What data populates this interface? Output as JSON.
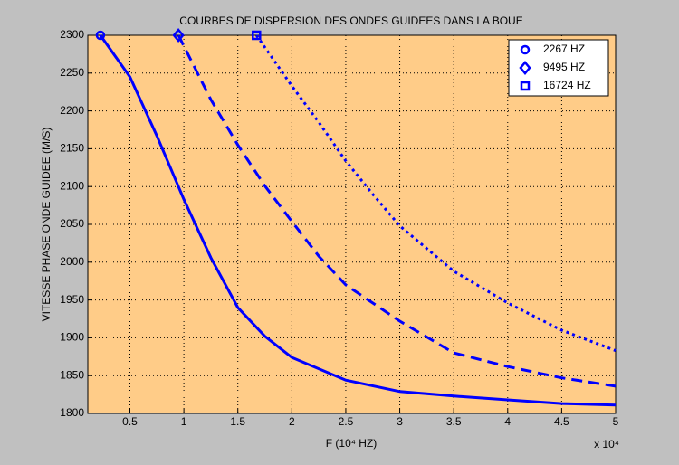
{
  "chart_data": {
    "type": "line",
    "title": "COURBES DE DISPERSION DES ONDES GUIDEES DANS LA BOUE",
    "xlabel": "F (10⁴ HZ)",
    "ylabel": "VITESSE PHASE ONDE GUIDEE (M/S)",
    "x_multiplier": "x 10⁴",
    "xlim": [
      0.11,
      5
    ],
    "xticks": [
      0.5,
      1,
      1.5,
      2,
      2.5,
      3,
      3.5,
      4,
      4.5,
      5
    ],
    "ylim": [
      1800,
      2300
    ],
    "yticks": [
      1800,
      1850,
      1900,
      1950,
      2000,
      2050,
      2100,
      2150,
      2200,
      2250,
      2300
    ],
    "grid": true,
    "legend": "top-right",
    "series": [
      {
        "name": "2267 HZ",
        "color": "#0000ff",
        "linestyle": "solid",
        "marker": "circle",
        "x": [
          0.2267,
          0.5,
          0.75,
          1,
          1.25,
          1.5,
          1.75,
          2,
          2.5,
          3,
          3.5,
          4,
          4.5,
          5
        ],
        "values": [
          2300,
          2245,
          2167,
          2083,
          2006,
          1940,
          1902,
          1874,
          1844,
          1829,
          1823,
          1818,
          1813,
          1811
        ]
      },
      {
        "name": "9495 HZ",
        "color": "#0000ff",
        "linestyle": "dashed",
        "marker": "diamond",
        "x": [
          0.9495,
          1.25,
          1.5,
          1.75,
          2,
          2.25,
          2.5,
          3,
          3.5,
          4,
          4.5,
          5
        ],
        "values": [
          2300,
          2215,
          2155,
          2101,
          2054,
          2008,
          1970,
          1922,
          1880,
          1862,
          1847,
          1836
        ]
      },
      {
        "name": "16724 HZ",
        "color": "#0000ff",
        "linestyle": "dotted",
        "marker": "square",
        "x": [
          1.6724,
          2,
          2.25,
          2.5,
          2.75,
          3,
          3.5,
          4,
          4.5,
          5
        ],
        "values": [
          2300,
          2233,
          2185,
          2134,
          2090,
          2048,
          1988,
          1946,
          1910,
          1883
        ]
      }
    ]
  }
}
